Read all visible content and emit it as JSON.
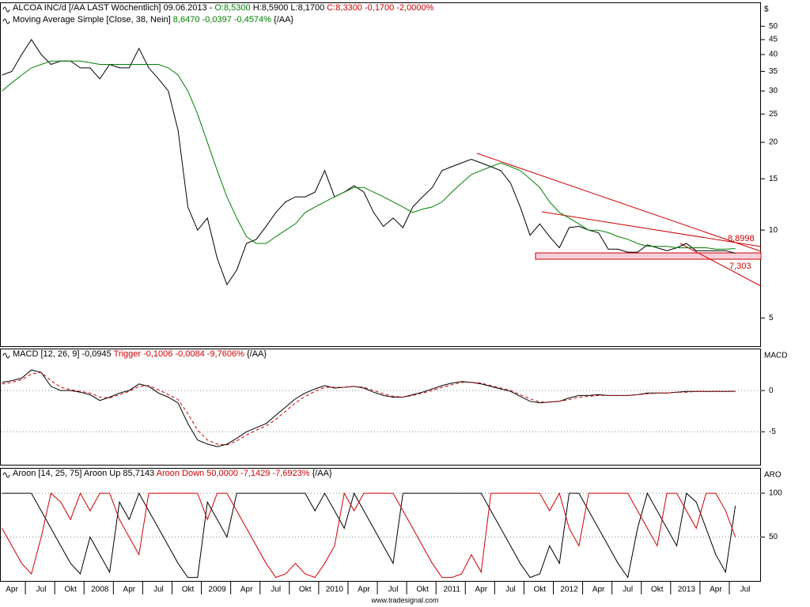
{
  "chart_data": [
    {
      "type": "line",
      "log": true,
      "header": [
        {
          "text": "ALCOA INC/d [/AA LAST Wöchentlich] 09.06.2013 - ",
          "color": "#000000"
        },
        {
          "text": "O:8,5300 ",
          "color": "#008000"
        },
        {
          "text": "H:8,5900 L:8,1700 ",
          "color": "#000000"
        },
        {
          "text": "C:8,3300 -0,1700 -2,0000%",
          "color": "#d00000"
        }
      ],
      "subheader": [
        {
          "text": "Moving Average Simple [Close, 38, Nein] ",
          "color": "#000000"
        },
        {
          "text": "8,6470 -0,0397 -0,4574% ",
          "color": "#008000"
        },
        {
          "text": "{/AA}",
          "color": "#000000"
        }
      ],
      "axis_label": "$",
      "ylim": [
        4,
        60
      ],
      "yticks": [
        5,
        10,
        15,
        20,
        25,
        30,
        35,
        40,
        45,
        50
      ],
      "grid": false,
      "annotations": [
        {
          "text": "8,8998",
          "color": "#d00000"
        },
        {
          "text": "7,303",
          "color": "#d00000"
        }
      ],
      "series": [
        {
          "color": "#000000",
          "values": [
            34,
            35,
            40,
            45,
            40,
            37,
            38,
            38,
            36,
            36,
            33,
            37,
            36,
            36,
            42,
            36,
            33,
            30,
            22,
            12,
            10,
            11,
            8,
            6.5,
            7.3,
            9,
            9.3,
            10.3,
            11.5,
            12.5,
            13,
            13,
            13.5,
            16,
            13,
            13.5,
            14.2,
            13.5,
            11.5,
            10.3,
            11,
            10.2,
            12,
            13,
            14,
            16,
            16.5,
            17,
            17.5,
            17,
            16.5,
            16,
            14.5,
            12,
            9.6,
            10.5,
            9.5,
            8.7,
            10.2,
            10.3,
            10,
            9.8,
            8.6,
            8.6,
            8.4,
            8.4,
            8.9,
            8.7,
            8.5,
            8.7,
            9,
            8.5,
            8.5,
            8.5,
            8.5,
            8.33,
            null,
            null
          ]
        },
        {
          "color": "#008000",
          "values": [
            30,
            32,
            34,
            36,
            37,
            38,
            38,
            38,
            38,
            37.5,
            37,
            37,
            37,
            37,
            37,
            37,
            37,
            36,
            34,
            30,
            25,
            20,
            16,
            13,
            11,
            9.5,
            9,
            9,
            9.5,
            10,
            10.5,
            11.5,
            12,
            12.5,
            13,
            13.5,
            14,
            14,
            13.5,
            13,
            12.5,
            12,
            11.5,
            11.8,
            12,
            12.5,
            13.5,
            14.5,
            15.5,
            16,
            16.5,
            17,
            16.5,
            16,
            15,
            14,
            12.5,
            11.5,
            11,
            10.5,
            10,
            10,
            9.8,
            9.5,
            9.3,
            9,
            8.8,
            8.8,
            8.8,
            8.7,
            8.7,
            8.7,
            8.7,
            8.6,
            8.6,
            8.647,
            null,
            null
          ]
        }
      ]
    },
    {
      "type": "line",
      "log": false,
      "header": [
        {
          "text": "MACD [12, 26, 9] -0,0945 ",
          "color": "#000000"
        },
        {
          "text": "Trigger -0,1006 -0,0084 -9,7606% ",
          "color": "#d00000"
        },
        {
          "text": "{/AA}",
          "color": "#000000"
        }
      ],
      "axis_label": "MACD",
      "ylim": [
        -9,
        5
      ],
      "yticks": [
        0,
        -5
      ],
      "grid": true,
      "series": [
        {
          "color": "#000000",
          "dashed": false,
          "values": [
            1,
            1.2,
            1.5,
            2.5,
            2.2,
            0.5,
            0,
            0,
            -0.2,
            -0.5,
            -1.2,
            -0.8,
            -0.3,
            0,
            0.8,
            0.5,
            -0.3,
            -0.8,
            -1.5,
            -4,
            -6,
            -6.5,
            -6.8,
            -6.5,
            -5.8,
            -5,
            -4.5,
            -4,
            -3,
            -2,
            -1,
            -0.3,
            0.2,
            0.6,
            0.3,
            0.4,
            0.5,
            0.3,
            -0.2,
            -0.6,
            -0.8,
            -0.8,
            -0.5,
            -0.2,
            0.2,
            0.6,
            0.9,
            1.1,
            1,
            0.8,
            0.5,
            0.2,
            -0.1,
            -0.7,
            -1.3,
            -1.5,
            -1.4,
            -1.3,
            -0.9,
            -0.6,
            -0.6,
            -0.5,
            -0.6,
            -0.6,
            -0.6,
            -0.5,
            -0.3,
            -0.3,
            -0.3,
            -0.2,
            -0.1,
            -0.1,
            -0.1,
            -0.1,
            -0.1,
            -0.0945,
            null,
            null
          ]
        },
        {
          "color": "#d00000",
          "dashed": true,
          "values": [
            0.8,
            1,
            1.3,
            2,
            2.2,
            1.2,
            0.4,
            0.1,
            -0.1,
            -0.3,
            -0.8,
            -0.9,
            -0.5,
            -0.1,
            0.5,
            0.6,
            0.1,
            -0.5,
            -1.1,
            -2.8,
            -4.8,
            -6,
            -6.5,
            -6.6,
            -6.1,
            -5.4,
            -4.8,
            -4.3,
            -3.5,
            -2.5,
            -1.5,
            -0.7,
            -0.1,
            0.4,
            0.4,
            0.4,
            0.5,
            0.4,
            0,
            -0.4,
            -0.7,
            -0.8,
            -0.6,
            -0.3,
            0,
            0.4,
            0.7,
            1,
            1,
            0.9,
            0.6,
            0.3,
            0,
            -0.5,
            -1,
            -1.4,
            -1.4,
            -1.3,
            -1.1,
            -0.8,
            -0.7,
            -0.6,
            -0.6,
            -0.6,
            -0.6,
            -0.5,
            -0.4,
            -0.3,
            -0.3,
            -0.2,
            -0.2,
            -0.1,
            -0.1,
            -0.1,
            -0.1,
            -0.1006,
            null,
            null
          ]
        }
      ]
    },
    {
      "type": "line",
      "log": false,
      "header": [
        {
          "text": "Aroon [14, 25, 75] Aroon Up 85,7143 ",
          "color": "#000000"
        },
        {
          "text": "Aroon Down 50,0000 -7,1429 -7,6923% ",
          "color": "#d00000"
        },
        {
          "text": "{/AA}",
          "color": "#000000"
        }
      ],
      "axis_label": "ARO",
      "ylim": [
        0,
        128
      ],
      "yticks": [
        100,
        50
      ],
      "grid": true,
      "categories": [
        null,
        "Apr",
        null,
        null,
        "Jul",
        null,
        null,
        "Okt",
        null,
        null,
        "2008",
        null,
        null,
        "Apr",
        null,
        null,
        "Jul",
        null,
        null,
        "Okt",
        null,
        null,
        "2009",
        null,
        null,
        "Apr",
        null,
        null,
        "Jul",
        null,
        null,
        "Okt",
        null,
        null,
        "2010",
        null,
        null,
        "Apr",
        null,
        null,
        "Jul",
        null,
        null,
        "Okt",
        null,
        null,
        "2011",
        null,
        null,
        "Apr",
        null,
        null,
        "Jul",
        null,
        null,
        "Okt",
        null,
        null,
        "2012",
        null,
        null,
        "Apr",
        null,
        null,
        "Jul",
        null,
        null,
        "Okt",
        null,
        null,
        "2013",
        null,
        null,
        "Apr",
        null,
        null,
        "Jul",
        null
      ],
      "series": [
        {
          "color": "#000000",
          "dashed": false,
          "values": [
            100,
            100,
            100,
            100,
            80,
            60,
            40,
            20,
            8,
            50,
            30,
            10,
            90,
            70,
            100,
            80,
            60,
            40,
            20,
            4,
            4,
            90,
            70,
            50,
            100,
            100,
            100,
            100,
            100,
            100,
            100,
            100,
            80,
            100,
            80,
            60,
            100,
            80,
            60,
            40,
            20,
            100,
            100,
            100,
            100,
            100,
            100,
            100,
            100,
            100,
            80,
            60,
            40,
            20,
            4,
            8,
            40,
            20,
            100,
            100,
            80,
            60,
            40,
            20,
            4,
            60,
            100,
            80,
            60,
            40,
            100,
            90,
            60,
            30,
            10,
            85.7143,
            null,
            null
          ]
        },
        {
          "color": "#d00000",
          "dashed": false,
          "values": [
            60,
            40,
            20,
            8,
            50,
            100,
            90,
            70,
            100,
            80,
            100,
            100,
            70,
            50,
            30,
            100,
            100,
            100,
            100,
            100,
            100,
            70,
            100,
            100,
            80,
            60,
            40,
            20,
            4,
            8,
            20,
            8,
            4,
            20,
            40,
            100,
            80,
            100,
            100,
            100,
            100,
            80,
            60,
            40,
            20,
            4,
            4,
            8,
            30,
            10,
            100,
            100,
            100,
            100,
            100,
            100,
            80,
            100,
            60,
            40,
            100,
            100,
            100,
            100,
            100,
            80,
            60,
            40,
            100,
            100,
            80,
            60,
            100,
            100,
            80,
            50.0,
            null,
            null
          ]
        }
      ]
    }
  ],
  "footer": "www.tradesignal.com"
}
